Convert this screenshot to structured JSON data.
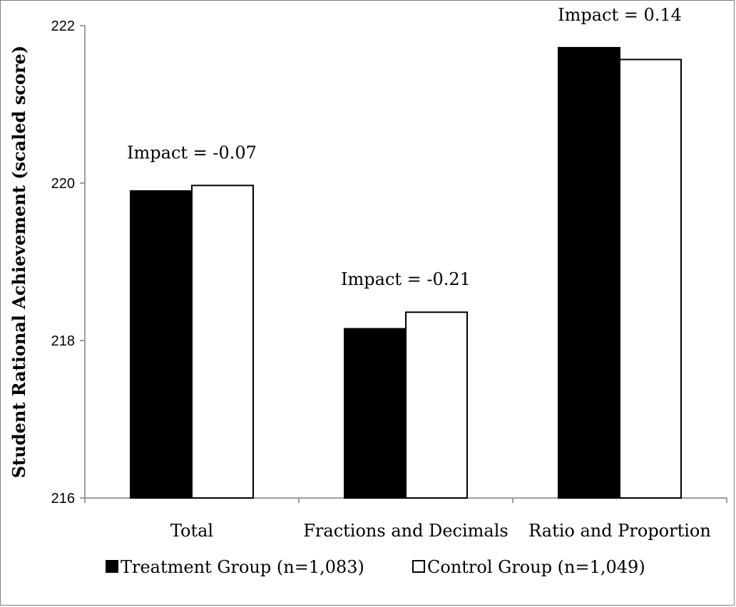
{
  "chart_data": {
    "type": "bar",
    "title": "",
    "xlabel": "",
    "ylabel": "Student Rational Achievement (scaled score)",
    "ylim": [
      216,
      222
    ],
    "yticks": [
      216,
      218,
      220,
      222
    ],
    "grid": false,
    "legend_position": "bottom",
    "categories": [
      "Total",
      "Fractions and Decimals",
      "Ratio and Proportion"
    ],
    "series": [
      {
        "name": "Treatment Group (n=1,083)",
        "values": [
          219.9,
          218.15,
          221.72
        ],
        "color": "#000000"
      },
      {
        "name": "Control Group (n=1,049)",
        "values": [
          219.97,
          218.36,
          221.57
        ],
        "color": "#ffffff"
      }
    ],
    "annotations": [
      "Impact = -0.07",
      "Impact = -0.21",
      "Impact = 0.14"
    ]
  }
}
